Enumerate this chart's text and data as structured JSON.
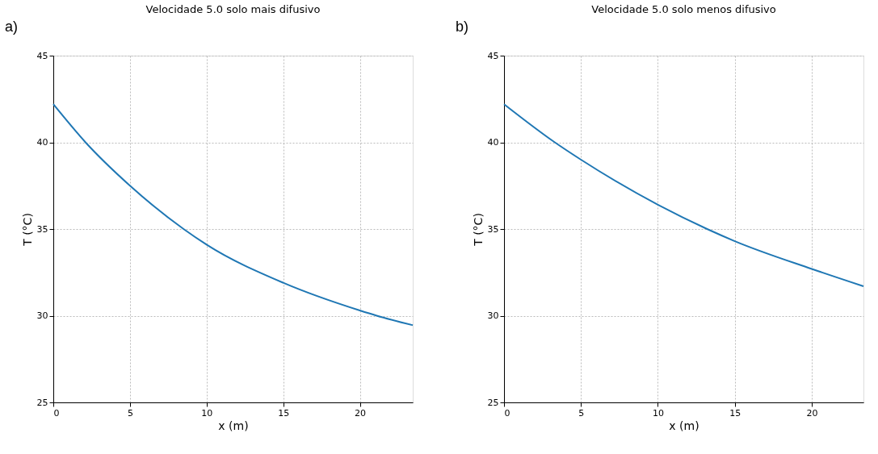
{
  "chart_data": [
    {
      "type": "line",
      "title": "Velocidade 5.0 solo mais difusivo",
      "xlabel": "x (m)",
      "ylabel": "T (°C)",
      "annotations": [
        "a)"
      ],
      "x": [
        0,
        2.1,
        5,
        8.5,
        10,
        15,
        20,
        21.1,
        23.45
      ],
      "series": [
        {
          "color": "#1f77b4",
          "values": [
            42.2,
            40,
            37.5,
            35,
            34.1,
            31.9,
            30.3,
            30,
            29.45
          ]
        }
      ],
      "xlim": [
        0,
        23.45
      ],
      "ylim": [
        25,
        45
      ],
      "xticks": [
        0,
        5,
        10,
        15,
        20
      ],
      "yticks": [
        25,
        30,
        35,
        40,
        45
      ],
      "grid": true,
      "line_style": "solid"
    },
    {
      "type": "line",
      "title": "Velocidade 5.0 solo menos difusivo",
      "xlabel": "x (m)",
      "ylabel": "T (°C)",
      "annotations": [
        "b)"
      ],
      "x": [
        0,
        3.3,
        5,
        10,
        13.2,
        15,
        20,
        23.36
      ],
      "series": [
        {
          "color": "#1f77b4",
          "values": [
            42.2,
            40,
            39.0,
            36.4,
            35,
            34.3,
            32.7,
            31.7
          ]
        }
      ],
      "xlim": [
        0,
        23.36
      ],
      "ylim": [
        25,
        45
      ],
      "xticks": [
        0,
        5,
        10,
        15,
        20
      ],
      "yticks": [
        25,
        30,
        35,
        40,
        45
      ],
      "grid": true,
      "line_style": "solid"
    }
  ]
}
